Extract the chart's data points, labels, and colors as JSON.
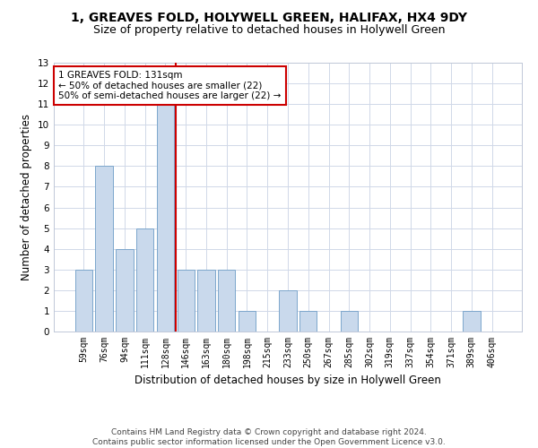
{
  "title1": "1, GREAVES FOLD, HOLYWELL GREEN, HALIFAX, HX4 9DY",
  "title2": "Size of property relative to detached houses in Holywell Green",
  "xlabel": "Distribution of detached houses by size in Holywell Green",
  "ylabel": "Number of detached properties",
  "categories": [
    "59sqm",
    "76sqm",
    "94sqm",
    "111sqm",
    "128sqm",
    "146sqm",
    "163sqm",
    "180sqm",
    "198sqm",
    "215sqm",
    "233sqm",
    "250sqm",
    "267sqm",
    "285sqm",
    "302sqm",
    "319sqm",
    "337sqm",
    "354sqm",
    "371sqm",
    "389sqm",
    "406sqm"
  ],
  "values": [
    3,
    8,
    4,
    5,
    11,
    3,
    3,
    3,
    1,
    0,
    2,
    1,
    0,
    1,
    0,
    0,
    0,
    0,
    0,
    1,
    0
  ],
  "bar_color": "#c9d9ec",
  "bar_edge_color": "#7ca6cc",
  "vline_x": 4.5,
  "vline_color": "#cc0000",
  "annotation_text": "1 GREAVES FOLD: 131sqm\n← 50% of detached houses are smaller (22)\n50% of semi-detached houses are larger (22) →",
  "annotation_box_color": "white",
  "annotation_box_edge": "#cc0000",
  "ylim": [
    0,
    13
  ],
  "yticks": [
    0,
    1,
    2,
    3,
    4,
    5,
    6,
    7,
    8,
    9,
    10,
    11,
    12,
    13
  ],
  "grid_color": "#d0d8e8",
  "footnote": "Contains HM Land Registry data © Crown copyright and database right 2024.\nContains public sector information licensed under the Open Government Licence v3.0.",
  "title1_fontsize": 10,
  "title2_fontsize": 9,
  "xlabel_fontsize": 8.5,
  "ylabel_fontsize": 8.5,
  "annotation_fontsize": 7.5,
  "footnote_fontsize": 6.5,
  "tick_fontsize": 7.0,
  "ytick_fontsize": 7.5
}
